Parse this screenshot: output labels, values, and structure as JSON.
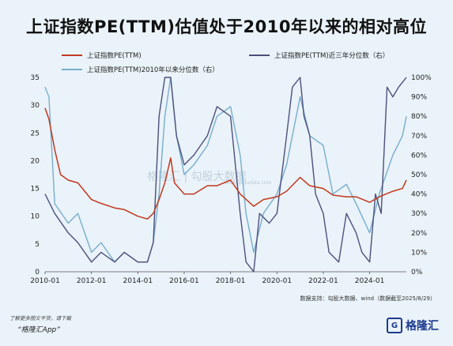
{
  "title": "上证指数PE(TTM)估值处于2010年以来的相对高位",
  "legend": {
    "pe": "上证指数PE(TTM)",
    "pe_3y": "上证指数PE(TTM)近三年分位数（右）",
    "pe_2010": "上证指数PE(TTM)2010年以来分位数（右）"
  },
  "colors": {
    "pe": "#c0391f",
    "pe_3y": "#4d4f7c",
    "pe_2010": "#78adcc",
    "background": "#eaf3f9"
  },
  "source": "数据支持：勾股大数据、wind（数据截至2025/8/29）",
  "watermark": "格隆汇 | 勾股大数据",
  "watermark_sub": "www.gogudata.com",
  "footer": {
    "note": "了解更多图文干货，请下载",
    "app": "“格隆汇App”",
    "brand": "格隆汇",
    "brand_mark": "G"
  },
  "chart_data": {
    "type": "line",
    "x_axis": {
      "ticks": [
        "2010-01",
        "2012-01",
        "2014-01",
        "2016-01",
        "2018-01",
        "2020-01",
        "2022-01",
        "2024-01"
      ],
      "range": [
        "2010-01",
        "2025-08"
      ]
    },
    "y_left": {
      "range": [
        0,
        35
      ],
      "ticks": [
        "0",
        "5",
        "10",
        "15",
        "20",
        "25",
        "30",
        "35"
      ]
    },
    "y_right": {
      "range": [
        0,
        100
      ],
      "ticks": [
        "0%",
        "10%",
        "20%",
        "30%",
        "40%",
        "50%",
        "60%",
        "70%",
        "80%",
        "90%",
        "100%"
      ]
    },
    "grid": false,
    "legend_position": "top",
    "series": [
      {
        "name": "上证指数PE(TTM)",
        "axis": "left",
        "x": [
          "2010-01",
          "2010-03",
          "2010-06",
          "2010-09",
          "2011-01",
          "2011-06",
          "2012-01",
          "2012-06",
          "2013-01",
          "2013-06",
          "2014-01",
          "2014-06",
          "2014-09",
          "2014-12",
          "2015-03",
          "2015-06",
          "2015-08",
          "2016-01",
          "2016-06",
          "2017-01",
          "2017-06",
          "2018-01",
          "2018-06",
          "2019-01",
          "2019-06",
          "2020-01",
          "2020-06",
          "2021-01",
          "2021-06",
          "2022-01",
          "2022-06",
          "2023-01",
          "2023-06",
          "2024-01",
          "2024-06",
          "2025-01",
          "2025-06",
          "2025-08"
        ],
        "values": [
          29.5,
          27.5,
          22.0,
          17.5,
          16.5,
          16.0,
          13.0,
          12.3,
          11.5,
          11.2,
          10.0,
          9.5,
          10.5,
          13.0,
          16.0,
          20.5,
          16.0,
          14.0,
          14.0,
          15.5,
          15.5,
          16.5,
          14.0,
          11.8,
          13.0,
          13.5,
          14.5,
          17.0,
          15.5,
          15.0,
          13.8,
          13.5,
          13.5,
          12.5,
          13.5,
          14.5,
          15.0,
          16.5
        ]
      },
      {
        "name": "上证指数PE(TTM)近三年分位数（右）",
        "axis": "right",
        "x": [
          "2010-01",
          "2010-06",
          "2011-01",
          "2011-06",
          "2012-01",
          "2012-06",
          "2013-01",
          "2013-06",
          "2014-01",
          "2014-06",
          "2014-09",
          "2014-12",
          "2015-03",
          "2015-06",
          "2015-09",
          "2016-01",
          "2016-06",
          "2017-01",
          "2017-06",
          "2018-01",
          "2018-03",
          "2018-06",
          "2018-09",
          "2019-01",
          "2019-04",
          "2019-09",
          "2020-01",
          "2020-06",
          "2020-09",
          "2021-01",
          "2021-03",
          "2021-06",
          "2021-09",
          "2022-01",
          "2022-04",
          "2022-09",
          "2023-01",
          "2023-06",
          "2023-09",
          "2024-01",
          "2024-04",
          "2024-07",
          "2024-10",
          "2025-01",
          "2025-04",
          "2025-08"
        ],
        "values": [
          40,
          30,
          20,
          15,
          5,
          10,
          5,
          10,
          5,
          5,
          15,
          80,
          100,
          100,
          70,
          55,
          60,
          70,
          85,
          80,
          60,
          30,
          5,
          0,
          30,
          25,
          30,
          70,
          95,
          100,
          80,
          70,
          40,
          30,
          10,
          5,
          30,
          20,
          10,
          5,
          40,
          30,
          95,
          90,
          95,
          100
        ]
      },
      {
        "name": "上证指数PE(TTM)2010年以来分位数（右）",
        "axis": "right",
        "x": [
          "2010-01",
          "2010-03",
          "2010-06",
          "2011-01",
          "2011-06",
          "2012-01",
          "2012-06",
          "2013-01",
          "2013-06",
          "2014-01",
          "2014-06",
          "2014-09",
          "2014-12",
          "2015-03",
          "2015-06",
          "2015-09",
          "2016-01",
          "2016-06",
          "2017-01",
          "2017-06",
          "2018-01",
          "2018-06",
          "2018-09",
          "2019-01",
          "2019-06",
          "2020-01",
          "2020-06",
          "2021-01",
          "2021-06",
          "2022-01",
          "2022-06",
          "2023-01",
          "2023-06",
          "2024-01",
          "2024-06",
          "2025-01",
          "2025-06",
          "2025-08"
        ],
        "values": [
          95,
          90,
          35,
          25,
          30,
          10,
          15,
          5,
          10,
          5,
          5,
          15,
          40,
          80,
          100,
          70,
          50,
          55,
          65,
          80,
          85,
          60,
          30,
          10,
          30,
          40,
          55,
          90,
          70,
          65,
          40,
          45,
          35,
          20,
          40,
          60,
          70,
          80
        ]
      }
    ]
  }
}
